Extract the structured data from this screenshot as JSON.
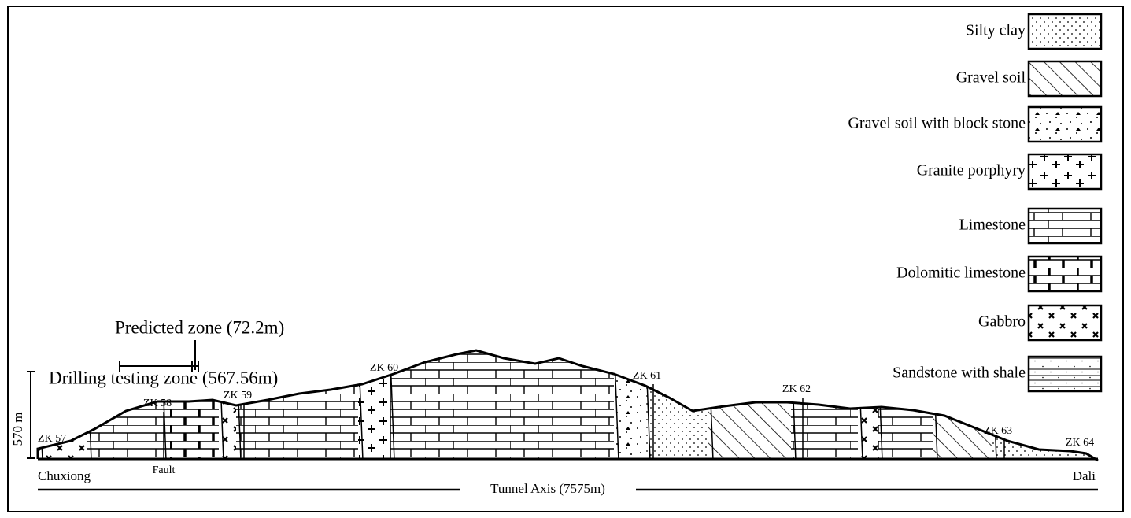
{
  "legend": {
    "items": [
      "Silty clay",
      "Gravel soil",
      "Gravel soil with block stone",
      "Granite porphyry",
      "Limestone",
      "Dolomitic limestone",
      "Gabbro",
      "Sandstone with shale"
    ]
  },
  "boreholes": [
    "ZK 57",
    "ZK 58",
    "ZK 59",
    "ZK 60",
    "ZK 61",
    "ZK 62",
    "ZK 63",
    "ZK 64"
  ],
  "labels": {
    "fault": "Fault",
    "start": "Chuxiong",
    "end": "Dali",
    "axis": "Tunnel Axis (7575m)",
    "predicted": "Predicted zone (72.2m)",
    "drilling": "Drilling testing zone (567.56m)",
    "scale": "570 m"
  }
}
